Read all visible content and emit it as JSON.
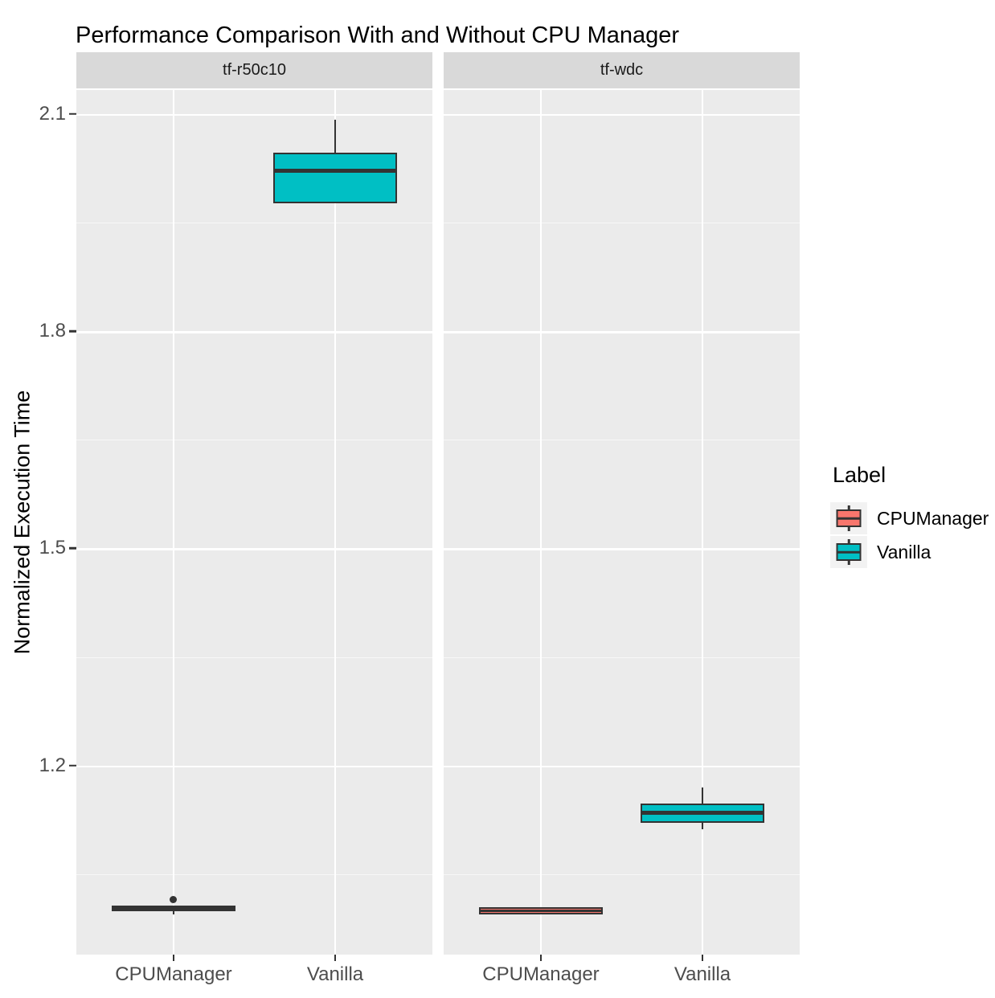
{
  "chart_data": {
    "type": "boxplot",
    "title": "Performance Comparison With and Without CPU Manager",
    "ylabel": "Normalized Execution Time",
    "xlabel": "",
    "x_categories": [
      "CPUManager",
      "Vanilla"
    ],
    "y_major_ticks": [
      2.1,
      1.8,
      1.5,
      1.2
    ],
    "y_minor_ticks": [
      1.95,
      1.65,
      1.35,
      1.05
    ],
    "ylim": [
      0.939,
      2.133
    ],
    "grid": true,
    "panel_background": "#EBEBEB",
    "strip_background": "#D9D9D9",
    "stroke_color": "#333333",
    "legend": {
      "title": "Label",
      "position": "right",
      "entries": [
        {
          "label": "CPUManager",
          "color": "#F8766D"
        },
        {
          "label": "Vanilla",
          "color": "#00BFC4"
        }
      ]
    },
    "facets": [
      {
        "label": "tf-r50c10",
        "boxes": [
          {
            "category": "CPUManager",
            "fill": "#F8766D",
            "whisker_low": 0.995,
            "q1": 0.999,
            "median": 1.003,
            "q3": 1.007,
            "whisker_high": 1.007,
            "outliers": [
              1.015
            ]
          },
          {
            "category": "Vanilla",
            "fill": "#00BFC4",
            "whisker_low": 1.976,
            "q1": 1.976,
            "median": 2.021,
            "q3": 2.046,
            "whisker_high": 2.092,
            "outliers": []
          }
        ]
      },
      {
        "label": "tf-wdc",
        "boxes": [
          {
            "category": "CPUManager",
            "fill": "#F8766D",
            "whisker_low": 0.994,
            "q1": 0.994,
            "median": 1.0,
            "q3": 1.005,
            "whisker_high": 1.005,
            "outliers": []
          },
          {
            "category": "Vanilla",
            "fill": "#00BFC4",
            "whisker_low": 1.112,
            "q1": 1.121,
            "median": 1.135,
            "q3": 1.148,
            "whisker_high": 1.17,
            "outliers": []
          }
        ]
      }
    ]
  }
}
